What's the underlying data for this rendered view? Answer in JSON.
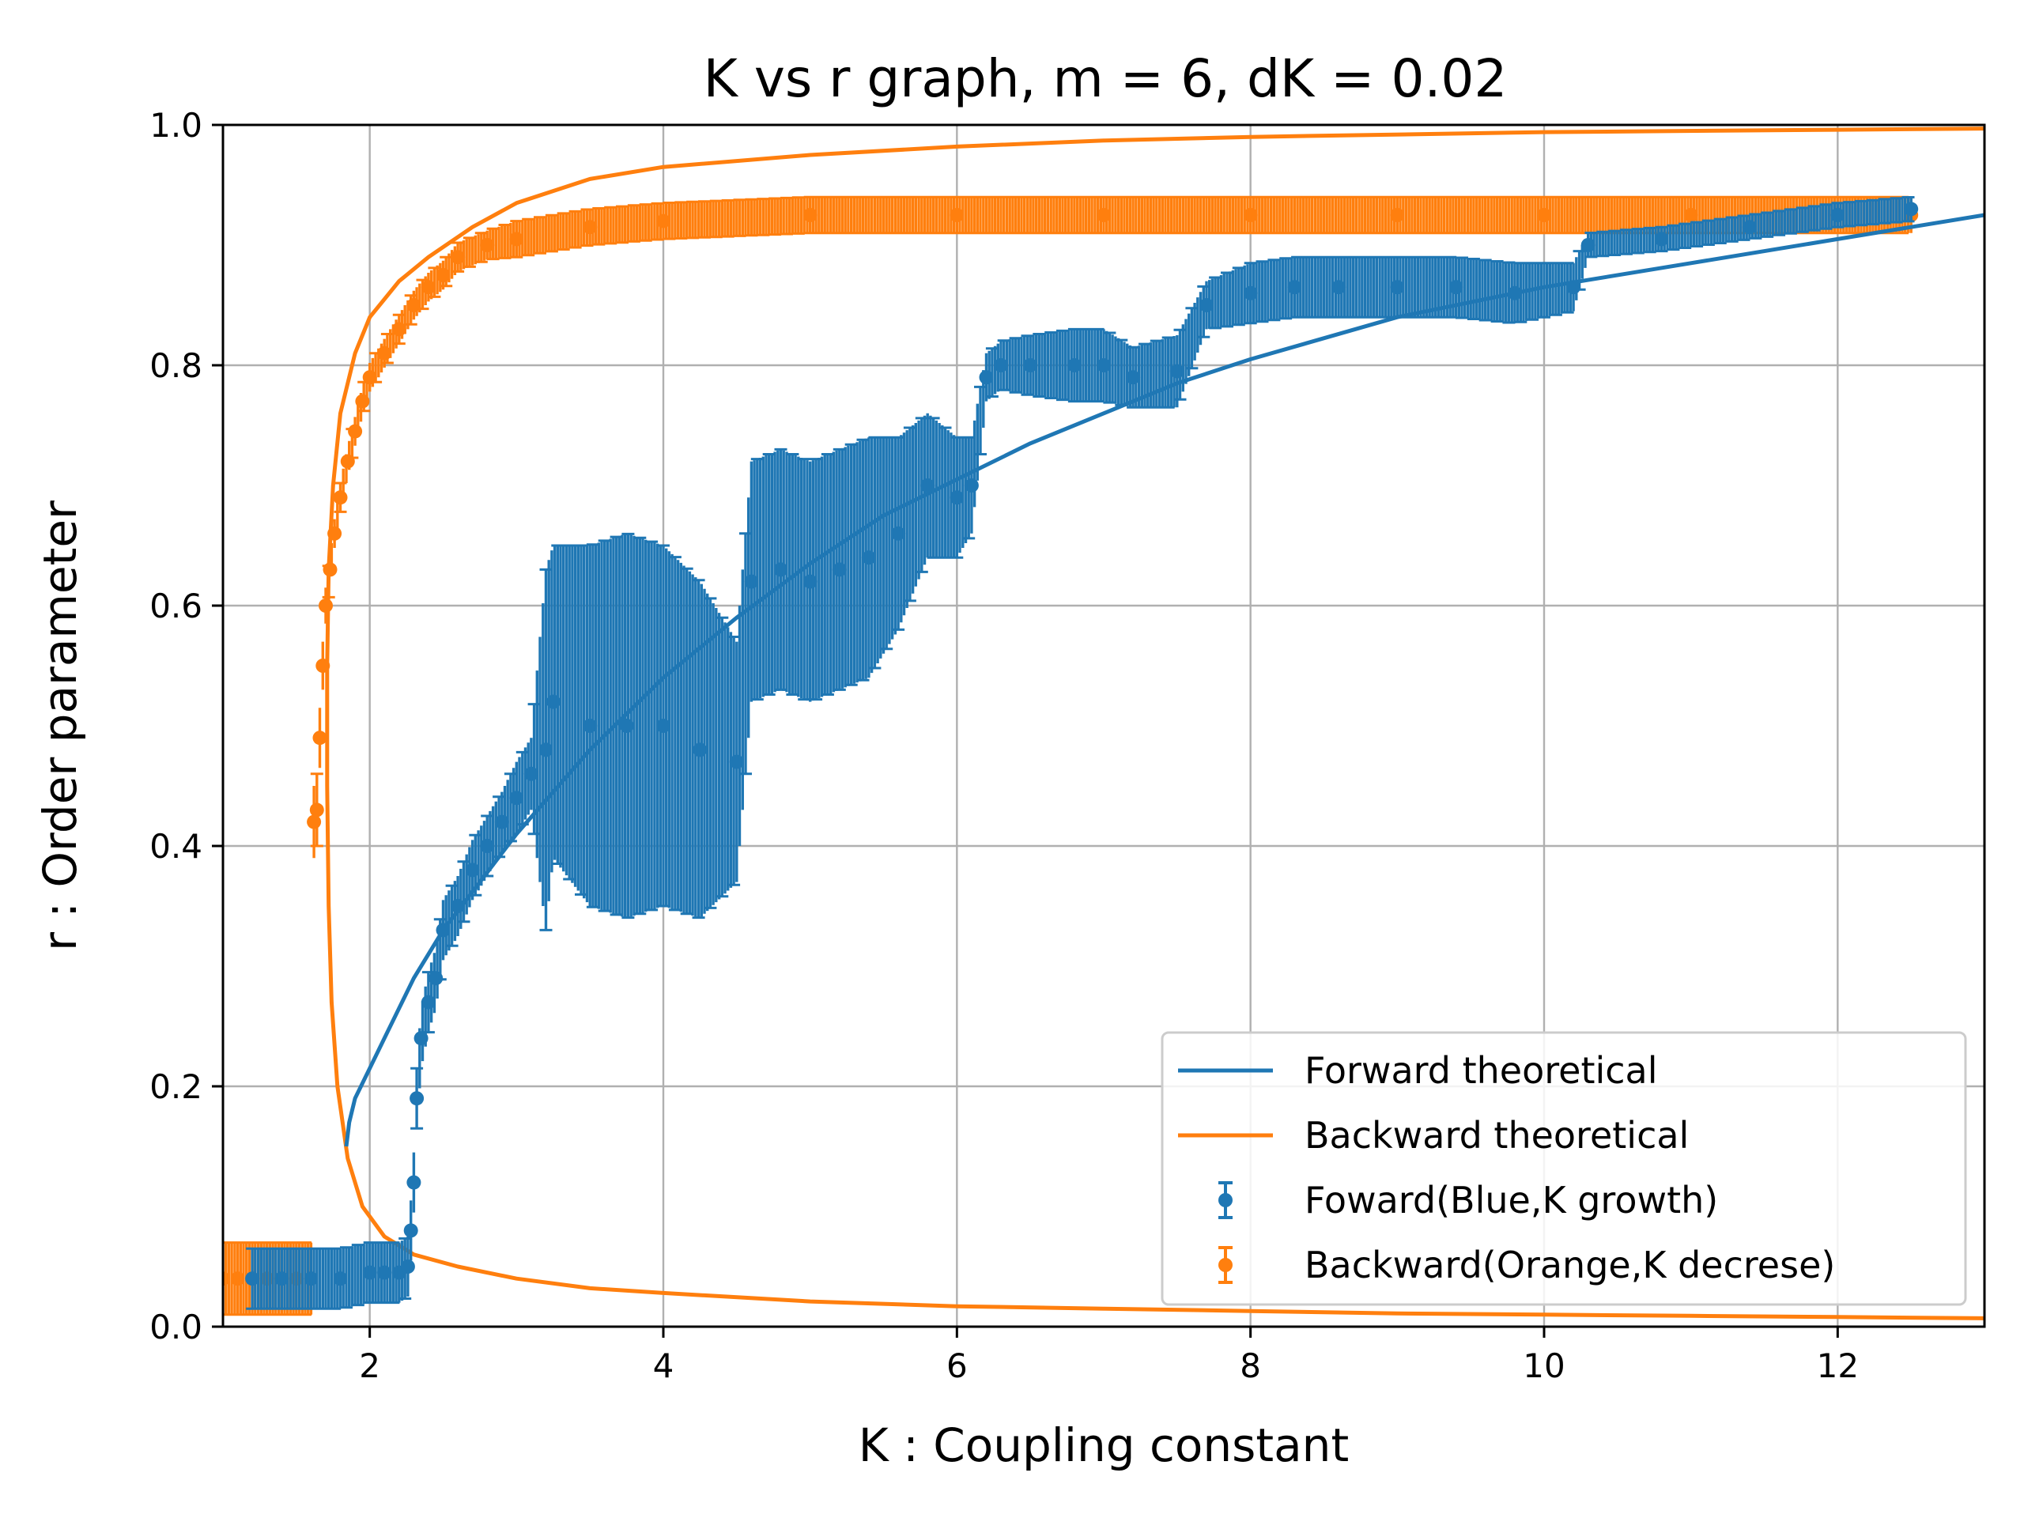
{
  "chart_data": {
    "type": "line",
    "title": "K vs r graph, m = 6, dK = 0.02",
    "xlabel": "K : Coupling constant",
    "ylabel": "r : Order parameter",
    "xlim": [
      1.0,
      13.0
    ],
    "ylim": [
      0.0,
      1.0
    ],
    "xticks": [
      2,
      4,
      6,
      8,
      10,
      12
    ],
    "yticks": [
      0.0,
      0.2,
      0.4,
      0.6,
      0.8,
      1.0
    ],
    "xtick_labels": [
      "2",
      "4",
      "6",
      "8",
      "10",
      "12"
    ],
    "ytick_labels": [
      "0.0",
      "0.2",
      "0.4",
      "0.6",
      "0.8",
      "1.0"
    ],
    "grid": true,
    "legend_position": "bottom-right",
    "colors": {
      "forward": "#1f77b4",
      "backward": "#ff7f0e"
    },
    "series": [
      {
        "name": "Forward theoretical",
        "kind": "line",
        "color": "#1f77b4",
        "x": [
          1.84,
          1.86,
          1.9,
          2.0,
          2.1,
          2.2,
          2.3,
          2.5,
          2.75,
          3.0,
          3.5,
          4.0,
          4.5,
          5.0,
          5.5,
          6.0,
          6.5,
          7.0,
          7.5,
          8.0,
          9.0,
          10.0,
          11.0,
          12.0,
          13.0
        ],
        "y": [
          0.15,
          0.17,
          0.19,
          0.215,
          0.24,
          0.265,
          0.29,
          0.33,
          0.37,
          0.41,
          0.48,
          0.54,
          0.59,
          0.635,
          0.675,
          0.705,
          0.735,
          0.76,
          0.785,
          0.805,
          0.84,
          0.865,
          0.885,
          0.905,
          0.925
        ]
      },
      {
        "name": "Backward theoretical",
        "kind": "line",
        "color": "#ff7f0e",
        "x": [
          13.0,
          12.0,
          11.0,
          10.0,
          9.0,
          8.0,
          7.0,
          6.0,
          5.0,
          4.0,
          3.5,
          3.0,
          2.6,
          2.3,
          2.1,
          1.95,
          1.85,
          1.78,
          1.74,
          1.72,
          1.71,
          1.71,
          1.72,
          1.75,
          1.8,
          1.9,
          2.0,
          2.2,
          2.4,
          2.7,
          3.0,
          3.5,
          4.0,
          5.0,
          6.0,
          7.0,
          8.0,
          10.0,
          12.0,
          13.0
        ],
        "y": [
          0.007,
          0.008,
          0.009,
          0.01,
          0.011,
          0.013,
          0.015,
          0.017,
          0.021,
          0.028,
          0.032,
          0.04,
          0.05,
          0.06,
          0.075,
          0.1,
          0.14,
          0.2,
          0.27,
          0.35,
          0.45,
          0.55,
          0.63,
          0.7,
          0.76,
          0.81,
          0.84,
          0.87,
          0.89,
          0.915,
          0.935,
          0.955,
          0.965,
          0.975,
          0.982,
          0.987,
          0.99,
          0.994,
          0.996,
          0.997
        ]
      },
      {
        "name": "Foward(Blue,K growth)",
        "kind": "errorbar",
        "color": "#1f77b4",
        "x": [
          1.2,
          1.4,
          1.6,
          1.8,
          2.0,
          2.1,
          2.2,
          2.26,
          2.28,
          2.3,
          2.32,
          2.35,
          2.4,
          2.45,
          2.5,
          2.6,
          2.7,
          2.8,
          2.9,
          3.0,
          3.1,
          3.2,
          3.25,
          3.5,
          3.75,
          4.0,
          4.25,
          4.5,
          4.6,
          4.8,
          5.0,
          5.2,
          5.4,
          5.6,
          5.8,
          6.0,
          6.1,
          6.2,
          6.3,
          6.5,
          6.8,
          7.0,
          7.2,
          7.5,
          7.7,
          8.0,
          8.3,
          8.6,
          9.0,
          9.4,
          9.8,
          10.2,
          10.3,
          10.8,
          11.4,
          12.0,
          12.5
        ],
        "y": [
          0.04,
          0.04,
          0.04,
          0.04,
          0.045,
          0.045,
          0.045,
          0.05,
          0.08,
          0.12,
          0.19,
          0.24,
          0.27,
          0.29,
          0.33,
          0.35,
          0.38,
          0.4,
          0.42,
          0.44,
          0.46,
          0.48,
          0.52,
          0.5,
          0.5,
          0.5,
          0.48,
          0.47,
          0.62,
          0.63,
          0.62,
          0.63,
          0.64,
          0.66,
          0.7,
          0.69,
          0.7,
          0.79,
          0.8,
          0.8,
          0.8,
          0.8,
          0.79,
          0.795,
          0.85,
          0.86,
          0.865,
          0.865,
          0.865,
          0.865,
          0.86,
          0.865,
          0.9,
          0.905,
          0.915,
          0.925,
          0.93
        ],
        "err": [
          0.025,
          0.025,
          0.025,
          0.025,
          0.025,
          0.025,
          0.025,
          0.025,
          0.025,
          0.025,
          0.025,
          0.025,
          0.025,
          0.025,
          0.025,
          0.025,
          0.025,
          0.025,
          0.025,
          0.03,
          0.03,
          0.15,
          0.13,
          0.15,
          0.16,
          0.15,
          0.14,
          0.1,
          0.1,
          0.1,
          0.1,
          0.1,
          0.1,
          0.08,
          0.06,
          0.05,
          0.04,
          0.02,
          0.02,
          0.025,
          0.03,
          0.03,
          0.025,
          0.03,
          0.02,
          0.025,
          0.025,
          0.025,
          0.025,
          0.025,
          0.025,
          0.02,
          0.01,
          0.01,
          0.01,
          0.01,
          0.01
        ]
      },
      {
        "name": "Backward(Orange,K decrese)",
        "kind": "errorbar",
        "color": "#ff7f0e",
        "x": [
          12.5,
          12.0,
          11.0,
          10.0,
          9.0,
          8.0,
          7.0,
          6.0,
          5.0,
          4.0,
          3.5,
          3.0,
          2.8,
          2.6,
          2.5,
          2.4,
          2.3,
          2.2,
          2.1,
          2.0,
          1.95,
          1.9,
          1.85,
          1.8,
          1.76,
          1.73,
          1.7,
          1.68,
          1.66,
          1.64,
          1.62,
          1.6,
          1.5,
          1.4,
          1.3,
          1.2,
          1.1,
          1.0
        ],
        "y": [
          0.925,
          0.925,
          0.925,
          0.925,
          0.925,
          0.925,
          0.925,
          0.925,
          0.925,
          0.92,
          0.915,
          0.905,
          0.9,
          0.89,
          0.875,
          0.865,
          0.85,
          0.83,
          0.81,
          0.79,
          0.77,
          0.745,
          0.72,
          0.69,
          0.66,
          0.63,
          0.6,
          0.55,
          0.49,
          0.43,
          0.42,
          0.04,
          0.04,
          0.04,
          0.04,
          0.04,
          0.04,
          0.04
        ],
        "err": [
          0.015,
          0.015,
          0.015,
          0.015,
          0.015,
          0.015,
          0.015,
          0.015,
          0.015,
          0.015,
          0.015,
          0.015,
          0.012,
          0.012,
          0.012,
          0.012,
          0.012,
          0.012,
          0.012,
          0.012,
          0.012,
          0.012,
          0.012,
          0.012,
          0.012,
          0.012,
          0.015,
          0.02,
          0.025,
          0.03,
          0.03,
          0.03,
          0.03,
          0.03,
          0.03,
          0.03,
          0.03,
          0.03
        ]
      }
    ]
  },
  "legend": {
    "items": [
      {
        "label": "Forward theoretical",
        "symbol": "line",
        "color": "#1f77b4"
      },
      {
        "label": "Backward theoretical",
        "symbol": "line",
        "color": "#ff7f0e"
      },
      {
        "label": "Foward(Blue,K growth)",
        "symbol": "errorbar",
        "color": "#1f77b4"
      },
      {
        "label": "Backward(Orange,K decrese)",
        "symbol": "errorbar",
        "color": "#ff7f0e"
      }
    ]
  }
}
